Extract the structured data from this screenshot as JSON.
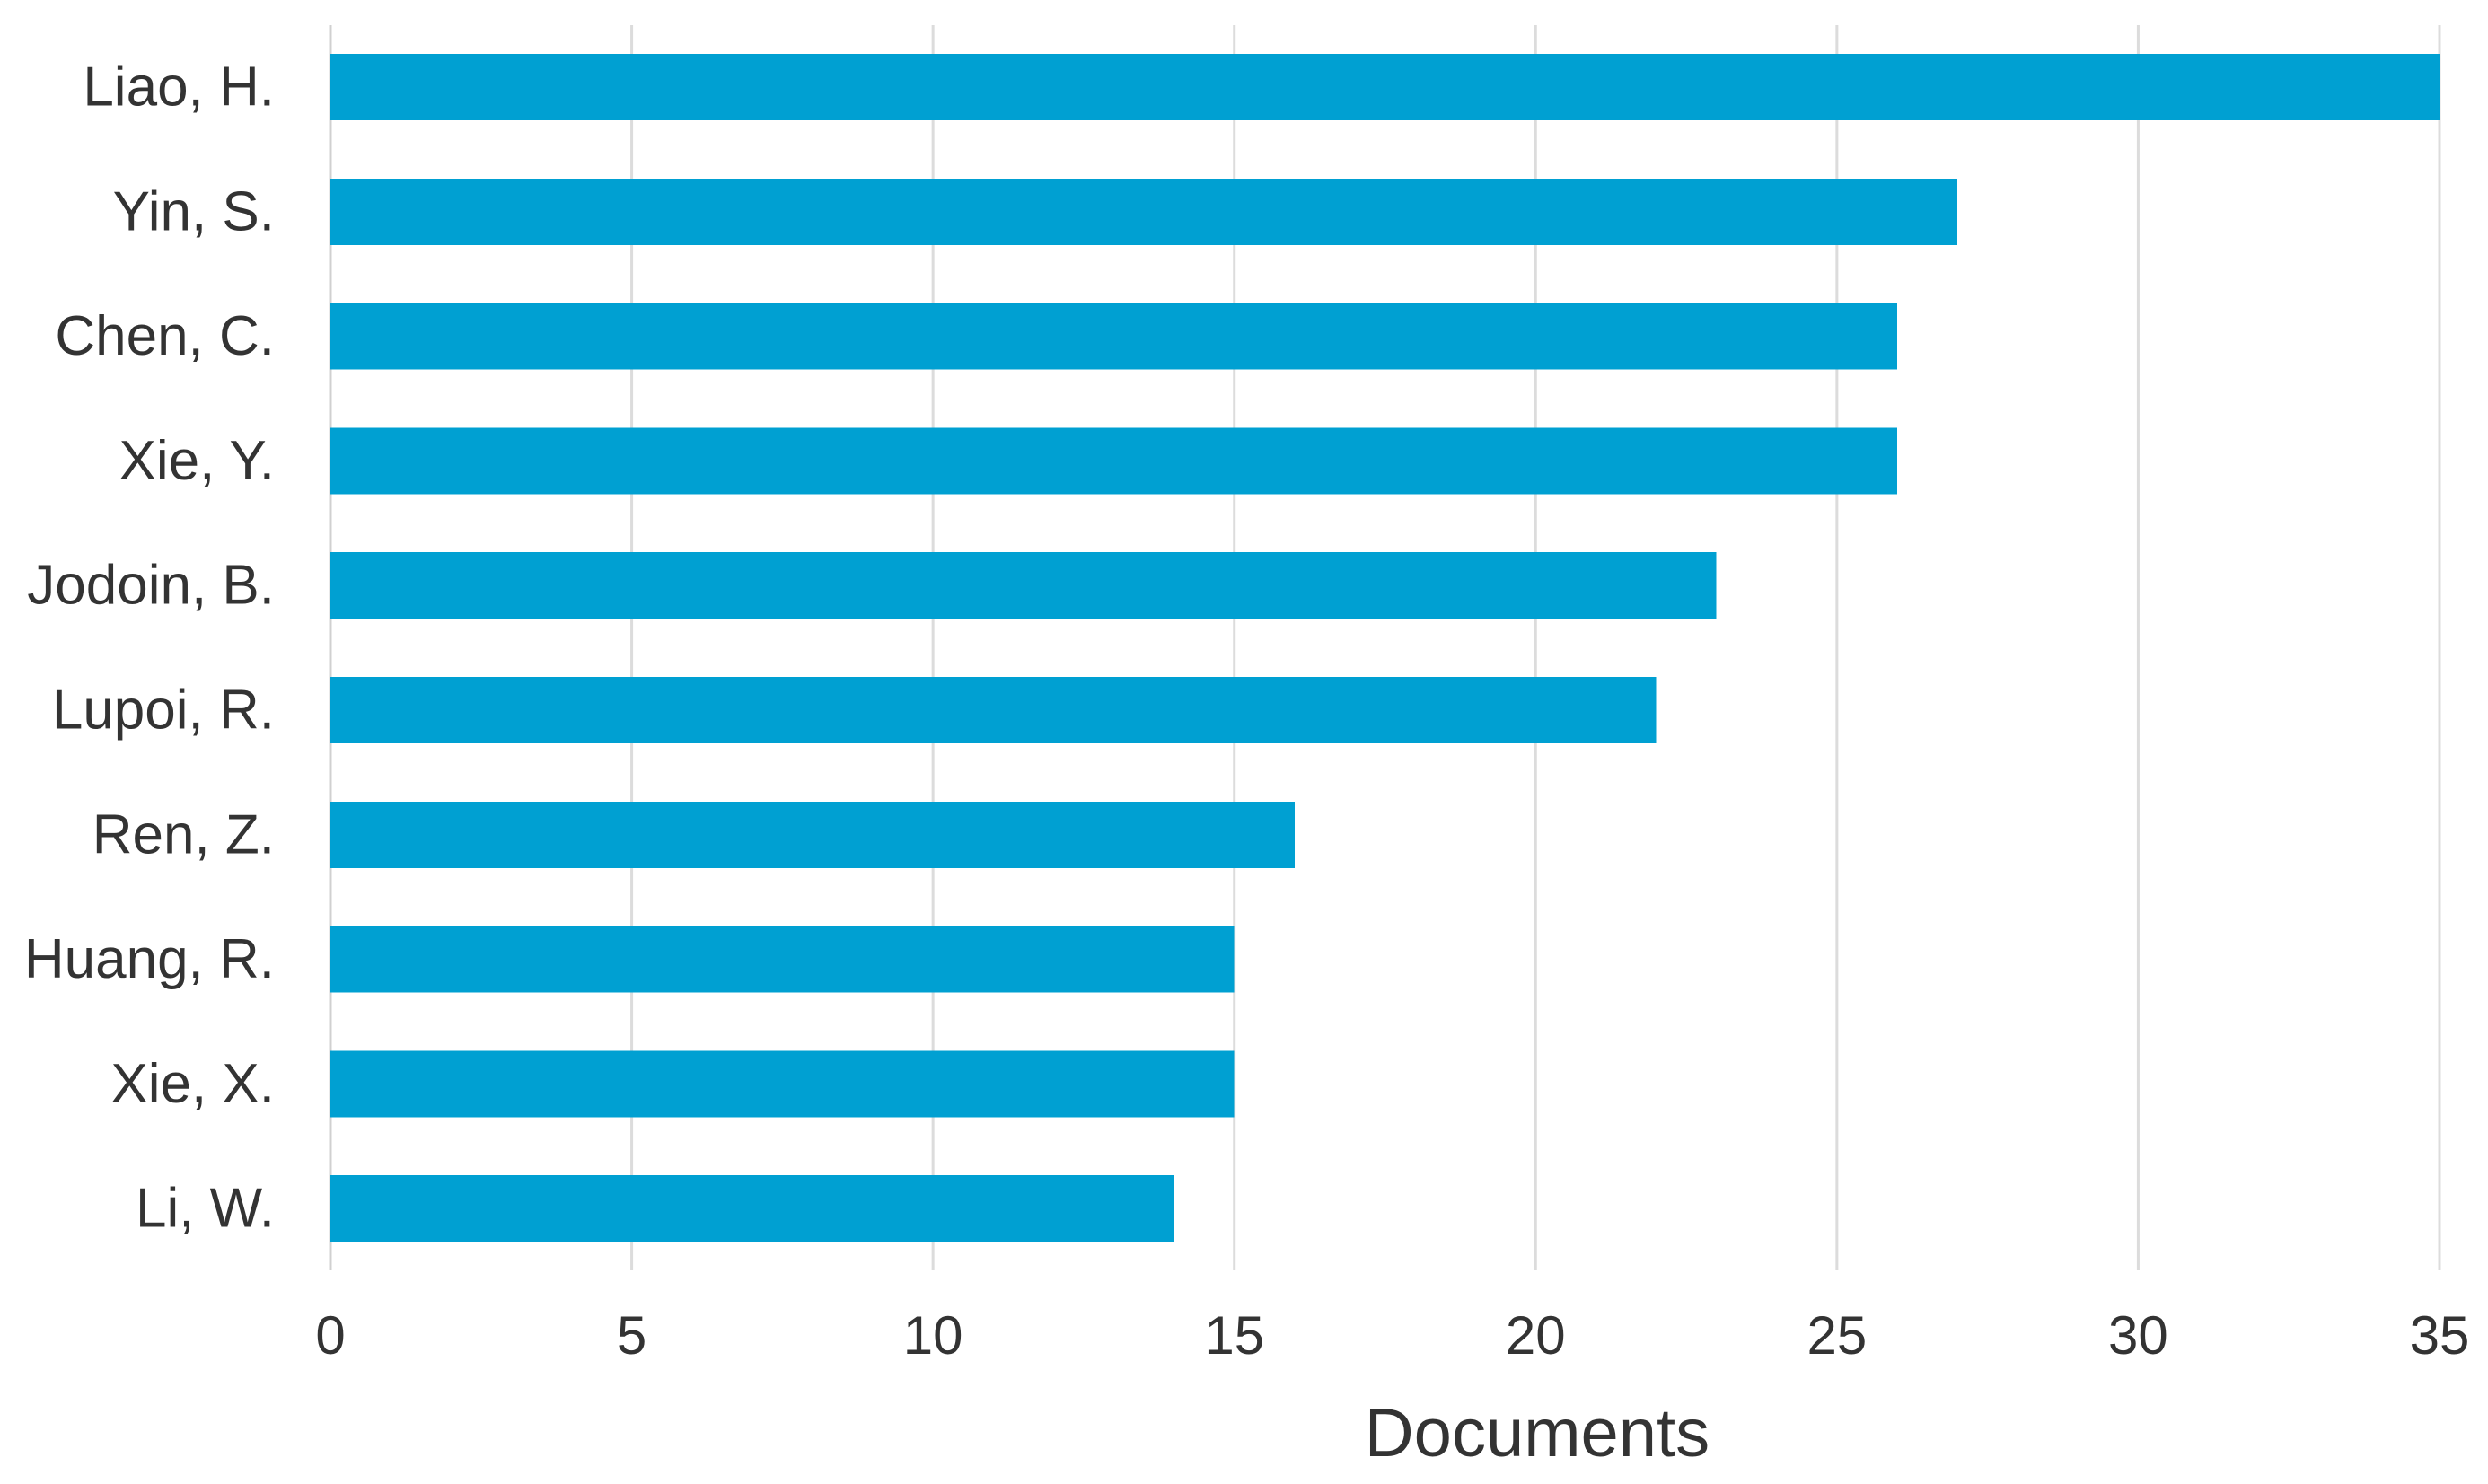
{
  "chart_data": {
    "type": "bar",
    "orientation": "horizontal",
    "categories": [
      "Liao, H.",
      "Yin, S.",
      "Chen, C.",
      "Xie, Y.",
      "Jodoin, B.",
      "Lupoi, R.",
      "Ren, Z.",
      "Huang, R.",
      "Xie, X.",
      "Li, W."
    ],
    "values": [
      35,
      27,
      26,
      26,
      23,
      22,
      16,
      15,
      15,
      14
    ],
    "xlabel": "Documents",
    "ylabel": "",
    "title": "",
    "xlim": [
      0,
      35
    ],
    "xticks": [
      "0",
      "5",
      "10",
      "15",
      "20",
      "25",
      "30",
      "35"
    ],
    "grid": "vertical",
    "legend": "none",
    "bar_color": "#00a0d2"
  }
}
